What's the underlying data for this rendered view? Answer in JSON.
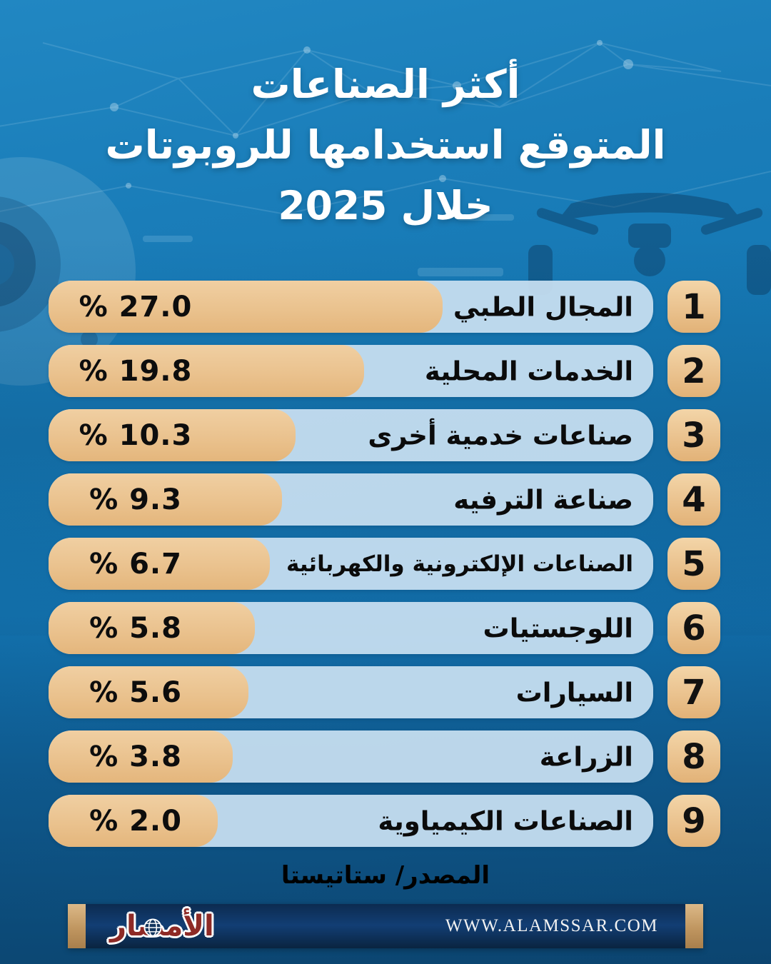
{
  "title": {
    "lines": [
      "أكثر الصناعات",
      "المتوقع استخدامها للروبوتات",
      "خلال 2025"
    ],
    "color": "#ffffff"
  },
  "chart_data": {
    "type": "bar",
    "orientation": "horizontal",
    "direction": "rtl",
    "title": "أكثر الصناعات المتوقع استخدامها للروبوتات خلال 2025",
    "unit": "%",
    "categories": [
      "المجال الطبي",
      "الخدمات المحلية",
      "صناعات خدمية أخرى",
      "صناعة الترفيه",
      "الصناعات الإلكترونية والكهربائية",
      "اللوجستيات",
      "السيارات",
      "الزراعة",
      "الصناعات الكيمياوية"
    ],
    "values": [
      27.0,
      19.8,
      10.3,
      9.3,
      6.7,
      5.8,
      5.6,
      3.8,
      2.0
    ],
    "value_labels": [
      "% 27.0",
      "% 19.8",
      "% 10.3",
      "% 9.3",
      "% 6.7",
      "% 5.8",
      "% 5.6",
      "% 3.8",
      "% 2.0"
    ],
    "ranks": [
      "1",
      "2",
      "3",
      "4",
      "5",
      "6",
      "7",
      "8",
      "9"
    ],
    "bar_pct": [
      65.2,
      52.2,
      40.9,
      38.6,
      36.6,
      34.1,
      33.1,
      30.5,
      28.0
    ],
    "xlim": [
      0,
      30
    ],
    "grid": false,
    "legend": "none",
    "colors": {
      "background": "#1478b5",
      "track": "#c5ddef",
      "fill": "#eac28e",
      "badge": "#eac28e",
      "label_text": "#0b0b0b",
      "title_text": "#ffffff"
    }
  },
  "source": {
    "label": "المصدر/ ستاتيستا",
    "color": "#eec48e"
  },
  "footer": {
    "logo_text": "الأمصار",
    "url": "WWW.ALAMSSAR.COM",
    "bar_color": "#0c2b50",
    "accent_color": "#c09660"
  }
}
